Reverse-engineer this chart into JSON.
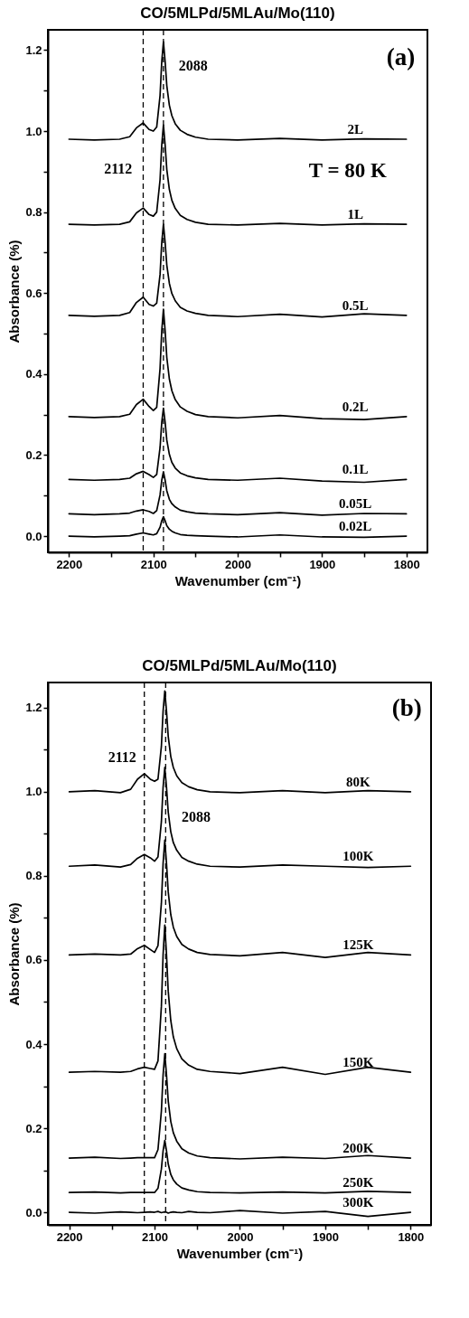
{
  "chart_data": [
    {
      "type": "line",
      "title": "CO/5MLPd/5MLAu/Mo(110)",
      "xlabel": "Wavenumber (cm⁻¹)",
      "ylabel": "Absorbance (%)",
      "x": [
        2200,
        2170,
        2140,
        2128,
        2120,
        2112,
        2105,
        2100,
        2096,
        2092,
        2090,
        2088,
        2086,
        2084,
        2081,
        2078,
        2074,
        2068,
        2060,
        2050,
        2035,
        2000,
        1950,
        1900,
        1850,
        1800
      ],
      "series": [
        {
          "name": "2L",
          "color": "#000000",
          "values": [
            0.98,
            0.978,
            0.98,
            0.986,
            1.008,
            1.02,
            1.004,
            1.0,
            1.01,
            1.088,
            1.172,
            1.22,
            1.172,
            1.112,
            1.064,
            1.038,
            1.018,
            1.002,
            0.992,
            0.985,
            0.98,
            0.978,
            0.982,
            0.978,
            0.981,
            0.98
          ]
        },
        {
          "name": "1L",
          "color": "#000000",
          "values": [
            0.77,
            0.768,
            0.77,
            0.776,
            0.798,
            0.81,
            0.794,
            0.79,
            0.8,
            0.88,
            0.966,
            1.015,
            0.966,
            0.905,
            0.856,
            0.829,
            0.809,
            0.792,
            0.782,
            0.775,
            0.77,
            0.768,
            0.772,
            0.768,
            0.771,
            0.77
          ]
        },
        {
          "name": "0.5L",
          "color": "#000000",
          "values": [
            0.545,
            0.543,
            0.545,
            0.552,
            0.577,
            0.59,
            0.572,
            0.568,
            0.575,
            0.646,
            0.725,
            0.77,
            0.725,
            0.669,
            0.624,
            0.599,
            0.581,
            0.565,
            0.556,
            0.55,
            0.545,
            0.542,
            0.548,
            0.541,
            0.549,
            0.545
          ]
        },
        {
          "name": "0.2L",
          "color": "#000000",
          "values": [
            0.295,
            0.293,
            0.295,
            0.301,
            0.325,
            0.338,
            0.32,
            0.31,
            0.318,
            0.414,
            0.507,
            0.56,
            0.507,
            0.441,
            0.388,
            0.359,
            0.337,
            0.319,
            0.308,
            0.3,
            0.295,
            0.292,
            0.298,
            0.29,
            0.288,
            0.295
          ]
        },
        {
          "name": "0.1L",
          "color": "#000000",
          "values": [
            0.14,
            0.138,
            0.14,
            0.143,
            0.154,
            0.16,
            0.152,
            0.145,
            0.152,
            0.219,
            0.281,
            0.316,
            0.281,
            0.237,
            0.202,
            0.182,
            0.168,
            0.156,
            0.149,
            0.144,
            0.14,
            0.138,
            0.143,
            0.136,
            0.133,
            0.14
          ]
        },
        {
          "name": "0.05L",
          "color": "#000000",
          "values": [
            0.055,
            0.053,
            0.055,
            0.057,
            0.062,
            0.065,
            0.061,
            0.056,
            0.063,
            0.102,
            0.138,
            0.159,
            0.138,
            0.112,
            0.091,
            0.08,
            0.072,
            0.064,
            0.06,
            0.057,
            0.055,
            0.053,
            0.058,
            0.052,
            0.056,
            0.055
          ]
        },
        {
          "name": "0.02L",
          "color": "#000000",
          "values": [
            0,
            -0.002,
            0,
            0.001,
            0.005,
            0.008,
            0.005,
            0.003,
            0.006,
            0.022,
            0.038,
            0.048,
            0.038,
            0.026,
            0.017,
            0.012,
            0.008,
            0.004,
            0.002,
            0.001,
            0,
            -0.002,
            0.003,
            -0.002,
            -0.003,
            0
          ]
        }
      ],
      "xlim": [
        2225,
        1775
      ],
      "ylim": [
        -0.04,
        1.25
      ],
      "xticks": [
        2200,
        {
          "value": 2150,
          "label": null
        },
        2100,
        {
          "value": 2050,
          "label": null
        },
        2000,
        {
          "value": 1950,
          "label": null
        },
        1900,
        {
          "value": 1850,
          "label": null
        },
        1800
      ],
      "yticks": [
        {
          "value": 0,
          "label": "0.0"
        },
        {
          "value": 0.1,
          "label": null
        },
        {
          "value": 0.2,
          "label": "0.2"
        },
        {
          "value": 0.3,
          "label": null
        },
        {
          "value": 0.4,
          "label": "0.4"
        },
        {
          "value": 0.5,
          "label": null
        },
        {
          "value": 0.6,
          "label": "0.6"
        },
        {
          "value": 0.7,
          "label": null
        },
        {
          "value": 0.8,
          "label": "0.8"
        },
        {
          "value": 0.9,
          "label": null
        },
        {
          "value": 1.0,
          "label": "1.0"
        },
        {
          "value": 1.1,
          "label": null
        },
        {
          "value": 1.2,
          "label": "1.2"
        }
      ],
      "ref_lines": [
        {
          "axis": "x",
          "value": 2112,
          "line_style": "dashed"
        },
        {
          "axis": "x",
          "value": 2088,
          "line_style": "dashed"
        }
      ],
      "annotations": [
        "(a)",
        "T = 80 K",
        "2088",
        "2112"
      ]
    },
    {
      "type": "line",
      "title": "CO/5MLPd/5MLAu/Mo(110)",
      "xlabel": "Wavenumber (cm⁻¹)",
      "ylabel": "Absorbance (%)",
      "x": [
        2200,
        2170,
        2140,
        2128,
        2120,
        2112,
        2105,
        2100,
        2096,
        2092,
        2090,
        2088,
        2086,
        2084,
        2081,
        2078,
        2074,
        2068,
        2060,
        2050,
        2035,
        2000,
        1950,
        1900,
        1850,
        1800
      ],
      "series": [
        {
          "name": "80K",
          "color": "#000000",
          "values": [
            1.0,
            1.003,
            0.998,
            1.006,
            1.03,
            1.043,
            1.03,
            1.025,
            1.03,
            1.108,
            1.192,
            1.24,
            1.192,
            1.132,
            1.084,
            1.058,
            1.038,
            1.022,
            1.012,
            1.005,
            1.0,
            0.998,
            1.003,
            0.998,
            1.003,
            1.0
          ]
        },
        {
          "name": "100K",
          "color": "#000000",
          "values": [
            0.823,
            0.826,
            0.821,
            0.827,
            0.842,
            0.851,
            0.843,
            0.835,
            0.845,
            0.929,
            1.011,
            1.058,
            1.011,
            0.952,
            0.905,
            0.879,
            0.861,
            0.844,
            0.835,
            0.828,
            0.823,
            0.821,
            0.826,
            0.823,
            0.82,
            0.823
          ]
        },
        {
          "name": "125K",
          "color": "#000000",
          "values": [
            0.612,
            0.614,
            0.612,
            0.614,
            0.627,
            0.635,
            0.625,
            0.618,
            0.634,
            0.735,
            0.83,
            0.885,
            0.83,
            0.762,
            0.708,
            0.678,
            0.656,
            0.637,
            0.626,
            0.618,
            0.613,
            0.61,
            0.618,
            0.606,
            0.618,
            0.612
          ]
        },
        {
          "name": "150K",
          "color": "#000000",
          "values": [
            0.333,
            0.335,
            0.333,
            0.335,
            0.341,
            0.345,
            0.342,
            0.34,
            0.36,
            0.49,
            0.613,
            0.683,
            0.613,
            0.526,
            0.456,
            0.417,
            0.389,
            0.365,
            0.35,
            0.34,
            0.335,
            0.33,
            0.345,
            0.328,
            0.345,
            0.333
          ]
        },
        {
          "name": "200K",
          "color": "#000000",
          "values": [
            0.129,
            0.131,
            0.128,
            0.129,
            0.13,
            0.13,
            0.13,
            0.13,
            0.149,
            0.241,
            0.327,
            0.377,
            0.327,
            0.265,
            0.216,
            0.189,
            0.169,
            0.151,
            0.141,
            0.134,
            0.13,
            0.127,
            0.131,
            0.128,
            0.135,
            0.129
          ]
        },
        {
          "name": "250K",
          "color": "#000000",
          "values": [
            0.047,
            0.048,
            0.046,
            0.047,
            0.047,
            0.047,
            0.047,
            0.047,
            0.057,
            0.103,
            0.146,
            0.171,
            0.146,
            0.115,
            0.09,
            0.077,
            0.067,
            0.058,
            0.053,
            0.049,
            0.047,
            0.046,
            0.048,
            0.046,
            0.05,
            0.047
          ]
        },
        {
          "name": "300K",
          "color": "#000000",
          "values": [
            0,
            -0.002,
            0.001,
            0,
            -0.001,
            0,
            0.001,
            0,
            0.002,
            -0.001,
            0,
            0.001,
            0,
            -0.002,
            0,
            0.001,
            0,
            -0.001,
            0.002,
            0,
            -0.001,
            0.004,
            -0.002,
            0.002,
            -0.01,
            0
          ]
        }
      ],
      "xlim": [
        2225,
        1776
      ],
      "ylim": [
        -0.03,
        1.26
      ],
      "xticks": [
        2200,
        {
          "value": 2150,
          "label": null
        },
        2100,
        {
          "value": 2050,
          "label": null
        },
        2000,
        {
          "value": 1950,
          "label": null
        },
        1900,
        {
          "value": 1850,
          "label": null
        },
        1800
      ],
      "yticks": [
        {
          "value": 0,
          "label": "0.0"
        },
        {
          "value": 0.1,
          "label": null
        },
        {
          "value": 0.2,
          "label": "0.2"
        },
        {
          "value": 0.3,
          "label": null
        },
        {
          "value": 0.4,
          "label": "0.4"
        },
        {
          "value": 0.5,
          "label": null
        },
        {
          "value": 0.6,
          "label": "0.6"
        },
        {
          "value": 0.7,
          "label": null
        },
        {
          "value": 0.8,
          "label": "0.8"
        },
        {
          "value": 0.9,
          "label": null
        },
        {
          "value": 1.0,
          "label": "1.0"
        },
        {
          "value": 1.1,
          "label": null
        },
        {
          "value": 1.2,
          "label": "1.2"
        }
      ],
      "ref_lines": [
        {
          "axis": "x",
          "value": 2112,
          "line_style": "dashed"
        },
        {
          "axis": "x",
          "value": 2087,
          "line_style": "dashed"
        }
      ],
      "annotations": [
        "(b)",
        "2112",
        "2088"
      ]
    }
  ]
}
